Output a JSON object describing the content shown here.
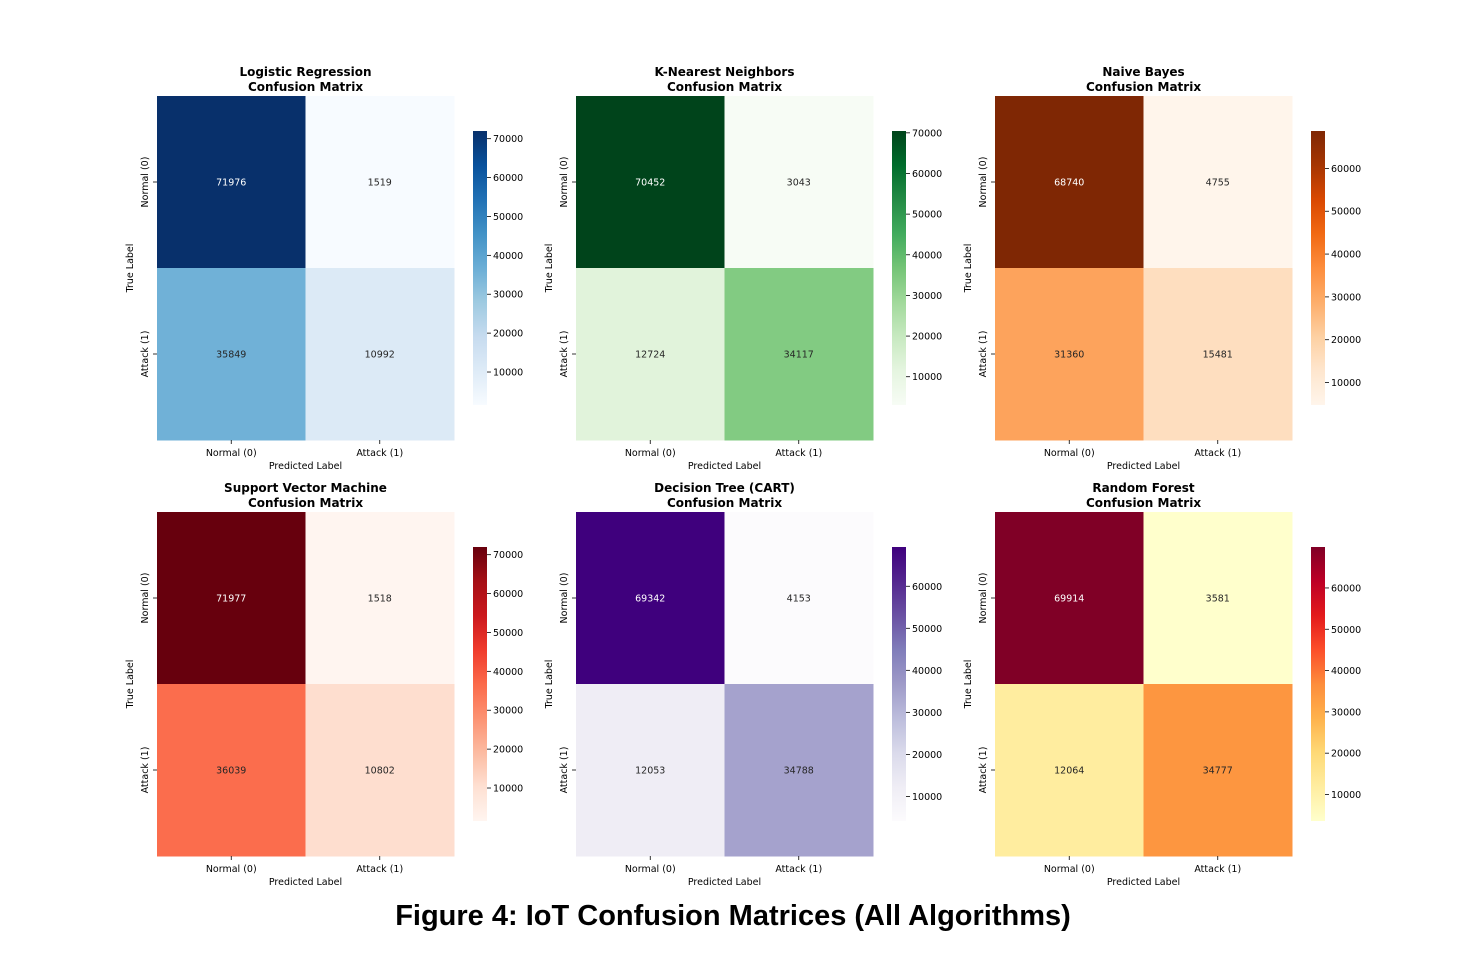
{
  "figure_caption": "Figure 4: IoT Confusion Matrices (All Algorithms)",
  "chart_data": [
    {
      "type": "heatmap",
      "title": "Logistic Regression\nConfusion Matrix",
      "xlabel": "Predicted Label",
      "ylabel": "True Label",
      "x_categories": [
        "Normal (0)",
        "Attack (1)"
      ],
      "y_categories": [
        "Normal (0)",
        "Attack (1)"
      ],
      "values": [
        [
          71976,
          1519
        ],
        [
          35849,
          10992
        ]
      ],
      "colormap": [
        "#f7fbff",
        "#deebf7",
        "#c6dbef",
        "#9ecae1",
        "#6baed6",
        "#4292c6",
        "#2171b5",
        "#08519c",
        "#08306b"
      ],
      "colorbar_ticks": [
        10000,
        20000,
        30000,
        40000,
        50000,
        60000,
        70000
      ]
    },
    {
      "type": "heatmap",
      "title": "K-Nearest Neighbors\nConfusion Matrix",
      "xlabel": "Predicted Label",
      "ylabel": "True Label",
      "x_categories": [
        "Normal (0)",
        "Attack (1)"
      ],
      "y_categories": [
        "Normal (0)",
        "Attack (1)"
      ],
      "values": [
        [
          70452,
          3043
        ],
        [
          12724,
          34117
        ]
      ],
      "colormap": [
        "#f7fcf5",
        "#e5f5e0",
        "#c7e9c0",
        "#a1d99b",
        "#74c476",
        "#41ab5d",
        "#238b45",
        "#006d2c",
        "#00441b"
      ],
      "colorbar_ticks": [
        10000,
        20000,
        30000,
        40000,
        50000,
        60000,
        70000
      ]
    },
    {
      "type": "heatmap",
      "title": "Naive Bayes\nConfusion Matrix",
      "xlabel": "Predicted Label",
      "ylabel": "True Label",
      "x_categories": [
        "Normal (0)",
        "Attack (1)"
      ],
      "y_categories": [
        "Normal (0)",
        "Attack (1)"
      ],
      "values": [
        [
          68740,
          4755
        ],
        [
          31360,
          15481
        ]
      ],
      "colormap": [
        "#fff5eb",
        "#fee6ce",
        "#fdd0a2",
        "#fdae6b",
        "#fd8d3c",
        "#f16913",
        "#d94801",
        "#a63603",
        "#7f2704"
      ],
      "colorbar_ticks": [
        10000,
        20000,
        30000,
        40000,
        50000,
        60000
      ]
    },
    {
      "type": "heatmap",
      "title": "Support Vector Machine\nConfusion Matrix",
      "xlabel": "Predicted Label",
      "ylabel": "True Label",
      "x_categories": [
        "Normal (0)",
        "Attack (1)"
      ],
      "y_categories": [
        "Normal (0)",
        "Attack (1)"
      ],
      "values": [
        [
          71977,
          1518
        ],
        [
          36039,
          10802
        ]
      ],
      "colormap": [
        "#fff5f0",
        "#fee0d2",
        "#fcbba1",
        "#fc9272",
        "#fb6a4a",
        "#ef3b2c",
        "#cb181d",
        "#a50f15",
        "#67000d"
      ],
      "colorbar_ticks": [
        10000,
        20000,
        30000,
        40000,
        50000,
        60000,
        70000
      ]
    },
    {
      "type": "heatmap",
      "title": "Decision Tree (CART)\nConfusion Matrix",
      "xlabel": "Predicted Label",
      "ylabel": "True Label",
      "x_categories": [
        "Normal (0)",
        "Attack (1)"
      ],
      "y_categories": [
        "Normal (0)",
        "Attack (1)"
      ],
      "values": [
        [
          69342,
          4153
        ],
        [
          12053,
          34788
        ]
      ],
      "colormap": [
        "#fcfbfd",
        "#efedf5",
        "#dadaeb",
        "#bcbddc",
        "#9e9ac8",
        "#807dba",
        "#6a51a3",
        "#54278f",
        "#3f007d"
      ],
      "colorbar_ticks": [
        10000,
        20000,
        30000,
        40000,
        50000,
        60000
      ]
    },
    {
      "type": "heatmap",
      "title": "Random Forest\nConfusion Matrix",
      "xlabel": "Predicted Label",
      "ylabel": "True Label",
      "x_categories": [
        "Normal (0)",
        "Attack (1)"
      ],
      "y_categories": [
        "Normal (0)",
        "Attack (1)"
      ],
      "values": [
        [
          69914,
          3581
        ],
        [
          12064,
          34777
        ]
      ],
      "colormap": [
        "#ffffcc",
        "#ffeda0",
        "#fed976",
        "#feb24c",
        "#fd8d3c",
        "#fc4e2a",
        "#e31a1c",
        "#bd0026",
        "#800026"
      ],
      "colorbar_ticks": [
        10000,
        20000,
        30000,
        40000,
        50000,
        60000
      ]
    }
  ]
}
